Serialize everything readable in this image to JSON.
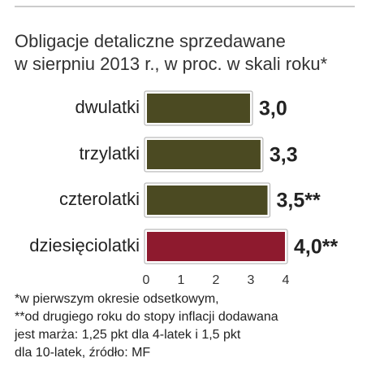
{
  "chart_data": {
    "type": "bar",
    "orientation": "horizontal",
    "title": [
      "Obligacje detaliczne sprzedawane",
      "w sierpniu 2013 r., w proc. w skali roku*"
    ],
    "categories": [
      "dwulatki",
      "trzylatki",
      "czterolatki",
      "dziesięciolatki"
    ],
    "values": [
      3.0,
      3.3,
      3.5,
      4.0
    ],
    "value_labels": [
      "3,0",
      "3,3",
      "3,5**",
      "4,0**"
    ],
    "colors": [
      "#4b4a22",
      "#4b4a22",
      "#4b4a22",
      "#8e1a2e"
    ],
    "xlim": [
      0,
      4
    ],
    "xticks": [
      0,
      1,
      2,
      3,
      4
    ],
    "notes": [
      "*w pierwszym okresie odsetkowym,",
      "**od drugiego roku do stopy inflacji dodawana",
      "jest marża: 1,25 pkt dla 4-latek i 1,5 pkt",
      "dla 10-latek, źródło: MF"
    ]
  }
}
